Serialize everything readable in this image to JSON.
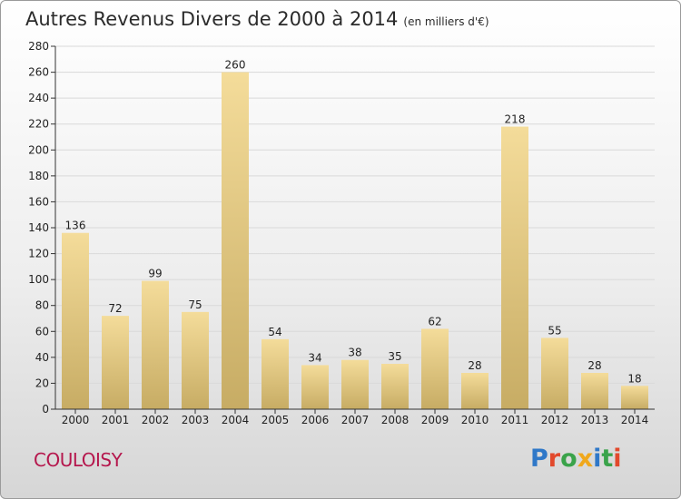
{
  "title": "Autres Revenus Divers de 2000 à 2014",
  "unit_note": "(en milliers d'€)",
  "town": "COULOISY",
  "logo": {
    "letters": [
      {
        "ch": "P",
        "color": "#2f78c8"
      },
      {
        "ch": "r",
        "color": "#e2492c"
      },
      {
        "ch": "o",
        "color": "#3aa34a"
      },
      {
        "ch": "x",
        "color": "#f0a81c"
      },
      {
        "ch": "i",
        "color": "#2f78c8"
      },
      {
        "ch": "t",
        "color": "#3aa34a"
      },
      {
        "ch": "i",
        "color": "#e2492c"
      }
    ]
  },
  "colors": {
    "bar_top": "#f4dc9a",
    "bar_bottom": "#c7ac64",
    "axis": "#333333",
    "grid": "#d9d9d9",
    "town": "#b5174d"
  },
  "chart_data": {
    "type": "bar",
    "categories": [
      "2000",
      "2001",
      "2002",
      "2003",
      "2004",
      "2005",
      "2006",
      "2007",
      "2008",
      "2009",
      "2010",
      "2011",
      "2012",
      "2013",
      "2014"
    ],
    "values": [
      136,
      72,
      99,
      75,
      260,
      54,
      34,
      38,
      35,
      62,
      28,
      218,
      55,
      28,
      18
    ],
    "ylim": [
      0,
      280
    ],
    "yticks": [
      0,
      20,
      40,
      60,
      80,
      100,
      120,
      140,
      160,
      180,
      200,
      220,
      240,
      260,
      280
    ],
    "grid": true,
    "data_labels": true
  }
}
